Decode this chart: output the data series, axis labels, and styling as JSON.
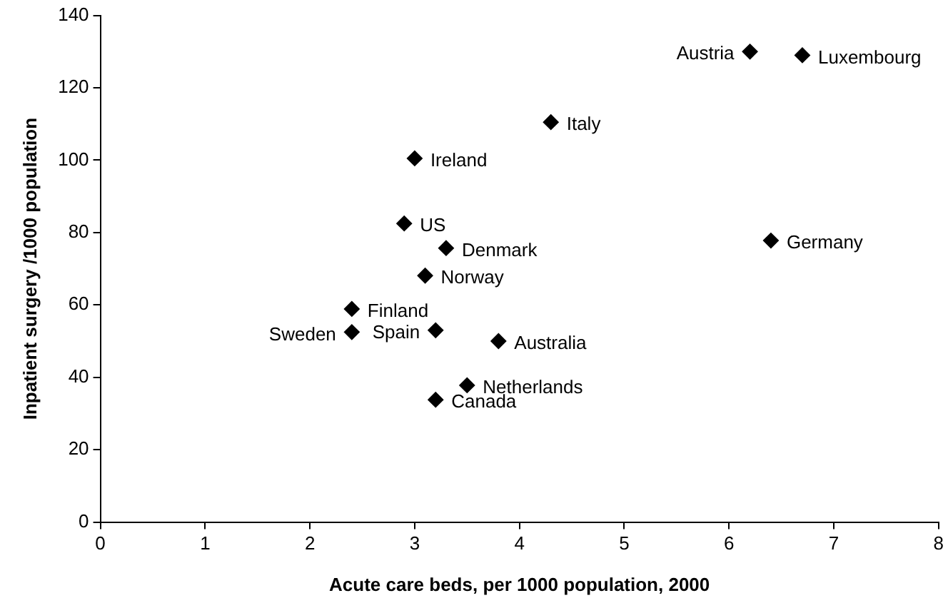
{
  "chart_data": {
    "type": "scatter",
    "xlabel": "Acute care beds, per 1000 population, 2000",
    "ylabel": "Inpatient surgery /1000 population",
    "x": [
      6.2,
      6.7,
      4.3,
      3.0,
      2.9,
      3.3,
      3.1,
      2.4,
      2.4,
      3.2,
      3.8,
      3.5,
      3.2,
      6.4
    ],
    "values": [
      130,
      129,
      110.5,
      100.5,
      82.5,
      75.7,
      68.1,
      58.9,
      52.5,
      53,
      50,
      37.8,
      33.8,
      77.8
    ],
    "value_labels": [
      "Austria",
      "Luxembourg",
      "Italy",
      "Ireland",
      "US",
      "Denmark",
      "Norway",
      "Finland",
      "Sweden",
      "Spain",
      "Australia",
      "Netherlands",
      "Canada",
      "Germany"
    ],
    "color": "#000000",
    "marker": "diamond",
    "grid": false,
    "legend": false,
    "xlim": [
      0,
      8
    ],
    "xticks": [
      0,
      1,
      2,
      3,
      4,
      5,
      6,
      7,
      8
    ],
    "ylim": [
      0,
      140
    ],
    "yticks": [
      0,
      20,
      40,
      60,
      80,
      100,
      120,
      140
    ]
  }
}
